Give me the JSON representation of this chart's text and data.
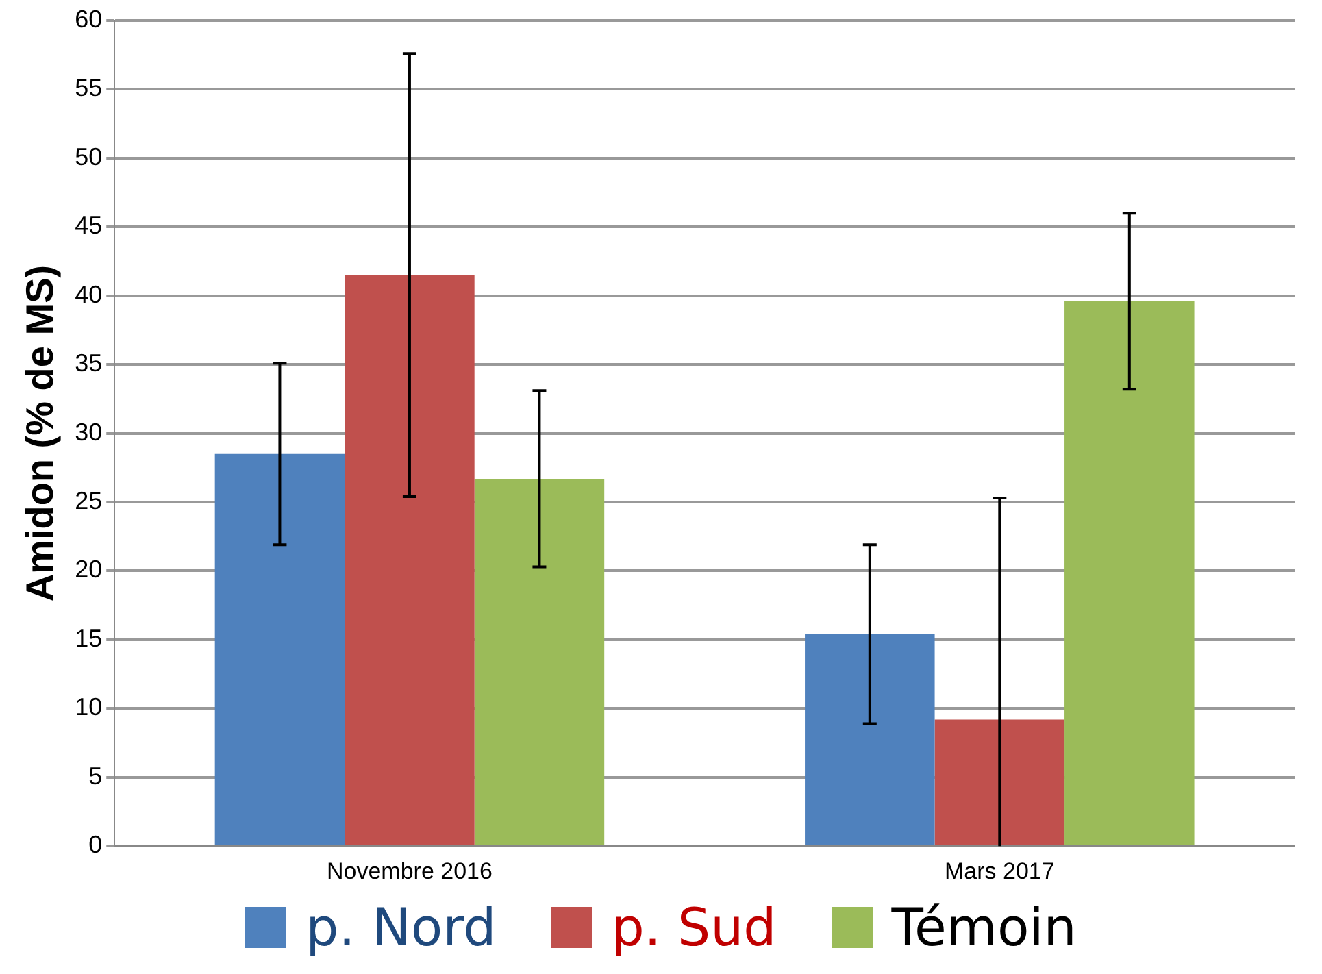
{
  "chart_data": {
    "type": "bar",
    "ylabel": "Amidon (% de MS)",
    "categories": [
      "Novembre 2016",
      "Mars 2017"
    ],
    "series": [
      {
        "name": "p. Nord",
        "color": "#4f81bd",
        "values": [
          28.5,
          15.4
        ],
        "errors": [
          6.6,
          6.5
        ]
      },
      {
        "name": "p. Sud",
        "color": "#c0504d",
        "values": [
          41.5,
          9.2
        ],
        "errors": [
          16.1,
          [
            0,
            25.3
          ]
        ]
      },
      {
        "name": "Témoin",
        "color": "#9bbb59",
        "values": [
          26.7,
          39.6
        ],
        "errors": [
          6.4,
          6.4
        ]
      }
    ],
    "ylim": [
      0,
      60
    ],
    "yticks": [
      0,
      5,
      10,
      15,
      20,
      25,
      30,
      35,
      40,
      45,
      50,
      55,
      60
    ],
    "grid": "y",
    "legend": "bottom"
  }
}
